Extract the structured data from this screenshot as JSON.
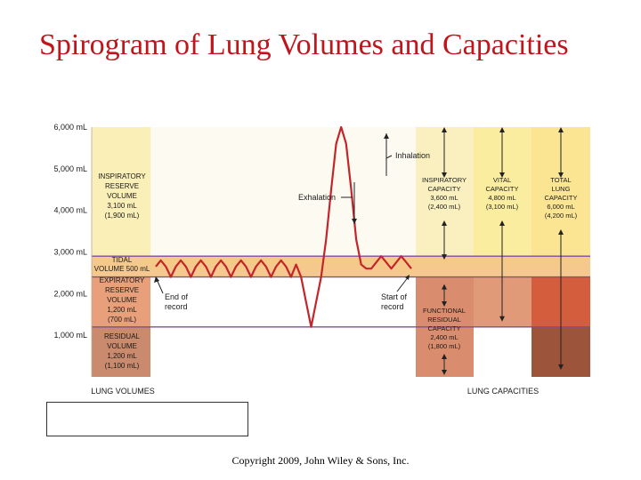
{
  "title": "Spirogram of Lung Volumes and Capacities",
  "copyright": "Copyright 2009, John Wiley & Sons, Inc.",
  "chart_data": {
    "type": "line",
    "y_unit": "mL",
    "ylim": [
      0,
      6000
    ],
    "y_ticks": [
      "1,000 mL",
      "2,000 mL",
      "3,000 mL",
      "4,000 mL",
      "5,000 mL",
      "6,000 mL"
    ],
    "y_tick_values": [
      1000,
      2000,
      3000,
      4000,
      5000,
      6000
    ],
    "levels": {
      "residual_top": 1200,
      "expiratory_top": 2400,
      "tidal_top": 2900
    },
    "trace_y": [
      2650,
      2800,
      2650,
      2400,
      2650,
      2800,
      2650,
      2400,
      2650,
      2800,
      2650,
      2400,
      2650,
      2800,
      2650,
      2400,
      2650,
      2800,
      2650,
      2400,
      2650,
      2800,
      2650,
      2400,
      2650,
      2800,
      2650,
      2400,
      2700,
      2400,
      1800,
      1200,
      1800,
      2400,
      3300,
      4500,
      5600,
      6000,
      5600,
      4500,
      3300,
      2700,
      2600,
      2600,
      2750,
      2900,
      2750,
      2600,
      2750,
      2900,
      2750,
      2600
    ],
    "volumes_label": "LUNG VOLUMES",
    "capacities_label": "LUNG CAPACITIES",
    "volumes": [
      {
        "lines": [
          "INSPIRATORY",
          "RESERVE",
          "VOLUME",
          "3,100 mL",
          "(1,900 mL)"
        ],
        "color": "#fbefb8"
      },
      {
        "lines": [
          "TIDAL",
          "VOLUME 500 mL"
        ],
        "color": "#f5c98c"
      },
      {
        "lines": [
          "EXPIRATORY",
          "RESERVE",
          "VOLUME",
          "1,200 mL",
          "(700 mL)"
        ],
        "color": "#e8a07b"
      },
      {
        "lines": [
          "RESIDUAL",
          "VOLUME",
          "1,200 mL",
          "(1,100 mL)"
        ],
        "color": "#c98a6d"
      }
    ],
    "capacities": [
      {
        "lines": [
          "INSPIRATORY",
          "CAPACITY",
          "3,600 mL",
          "(2,400 mL)"
        ]
      },
      {
        "lines": [
          "VITAL",
          "CAPACITY",
          "4,800 mL",
          "(3,100 mL)"
        ]
      },
      {
        "lines": [
          "TOTAL",
          "LUNG",
          "CAPACITY",
          "6,000 mL",
          "(4,200 mL)"
        ]
      },
      {
        "lines": [
          "FUNCTIONAL",
          "RESIDUAL",
          "CAPACITY",
          "2,400 mL",
          "(1,800 mL)"
        ]
      }
    ],
    "annotations": {
      "inhalation": "Inhalation",
      "exhalation": "Exhalation",
      "end_of_record": [
        "End of",
        "record"
      ],
      "start_of_record": [
        "Start of",
        "record"
      ]
    },
    "colors": {
      "trace": "#c3252b",
      "divider": "#7b4fa0",
      "ir_white": "#fdfbf1",
      "ic_bg": "#f9efbf",
      "vc_bg": "#fbeda0",
      "tlc_bg": "#fbe592",
      "frc_bg": "#d98d6e",
      "vc_low": "#e19a78",
      "tlc_mid": "#e4805e",
      "tlc_low": "#d45d3d",
      "tlc_res": "#9c553a",
      "res_white": "#c98a6d"
    }
  }
}
